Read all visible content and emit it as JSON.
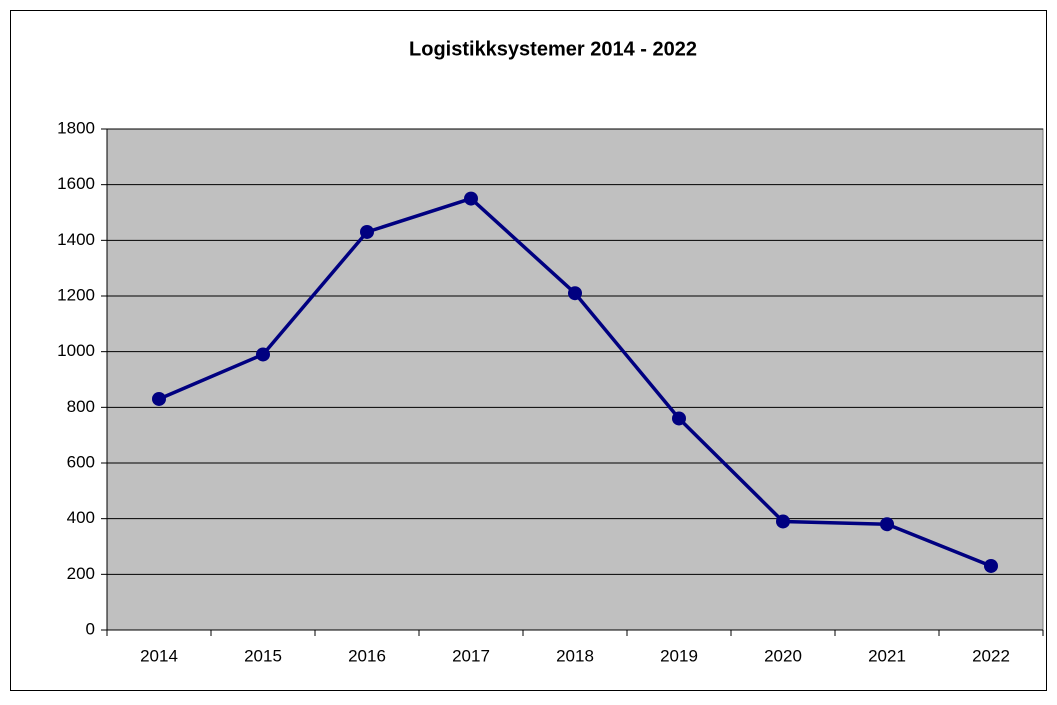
{
  "chart_data": {
    "type": "line",
    "title": "Logistikksystemer 2014 - 2022",
    "categories": [
      "2014",
      "2015",
      "2016",
      "2017",
      "2018",
      "2019",
      "2020",
      "2021",
      "2022"
    ],
    "series": [
      {
        "color": "#000080",
        "values": [
          830,
          990,
          1430,
          1550,
          1210,
          760,
          390,
          380,
          230
        ]
      }
    ],
    "ylim": [
      0,
      1800
    ],
    "yticks": [
      0,
      200,
      400,
      600,
      800,
      1000,
      1200,
      1400,
      1600,
      1800
    ],
    "grid": true,
    "plot_background": "#c0c0c0"
  }
}
